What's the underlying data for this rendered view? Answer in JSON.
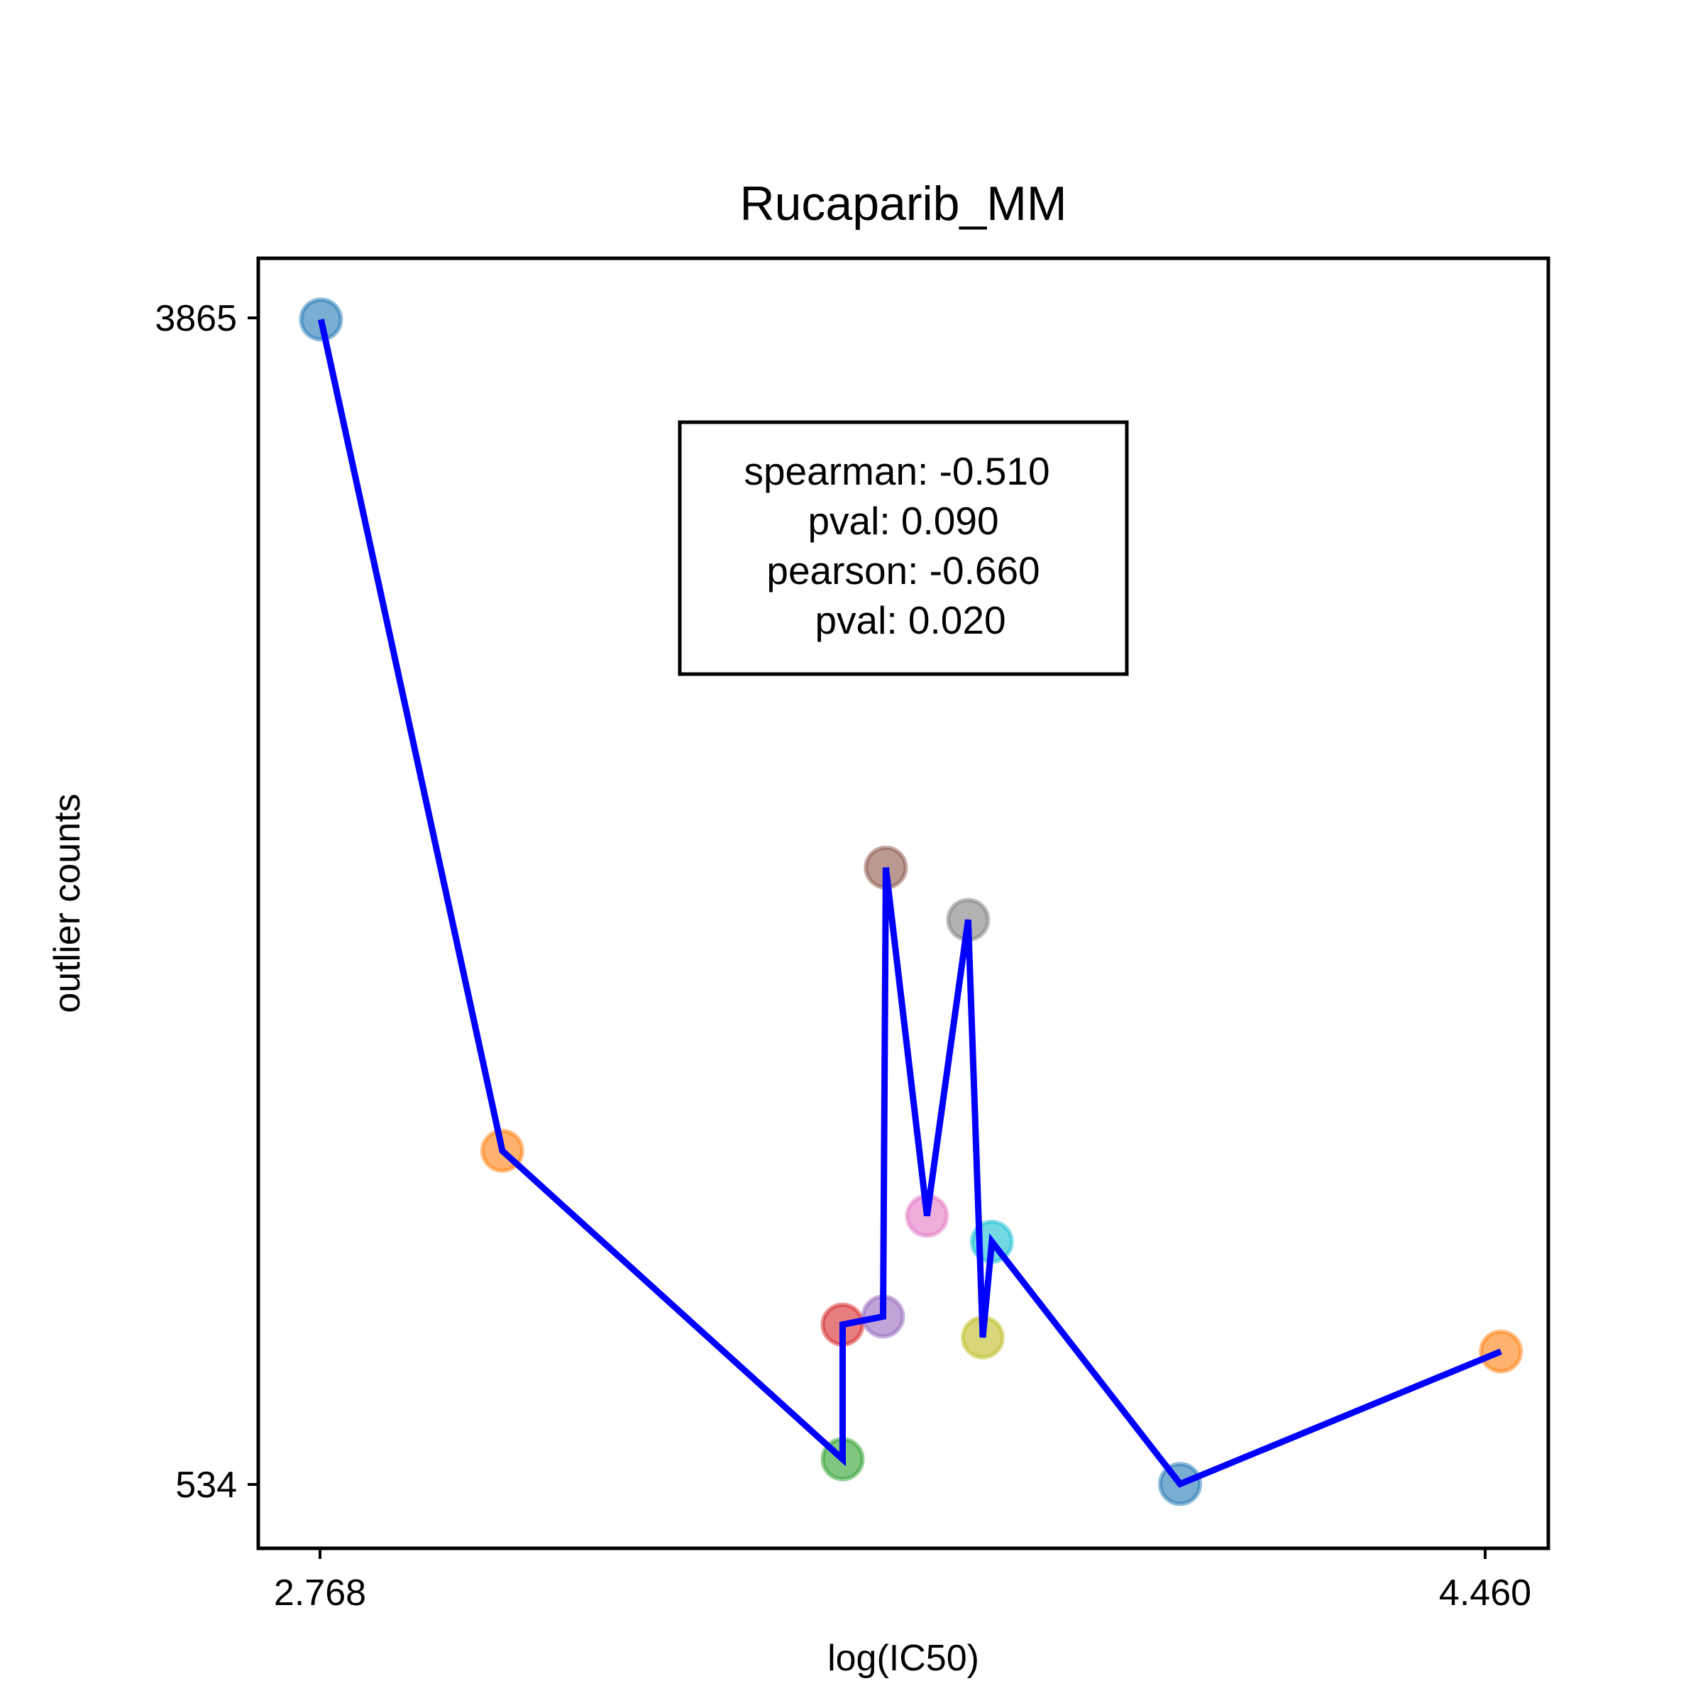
{
  "chart_data": {
    "type": "scatter",
    "title": "Rucaparib_MM",
    "xlabel": "log(IC50)",
    "ylabel": "outlier counts",
    "xlim": [
      2.678,
      4.528
    ],
    "ylim": [
      350,
      4040
    ],
    "x_ticks": [
      "2.768",
      "4.460"
    ],
    "x_tick_values": [
      2.768,
      4.46
    ],
    "y_ticks": [
      "3865",
      "534"
    ],
    "y_tick_values": [
      3865,
      534
    ],
    "grid": false,
    "line_color": "#0000ff",
    "points": [
      {
        "x": 2.768,
        "y": 3865,
        "color": "#1f77b4"
      },
      {
        "x": 3.028,
        "y": 1487,
        "color": "#ff7f0e"
      },
      {
        "x": 3.516,
        "y": 605,
        "color": "#2ca02c"
      },
      {
        "x": 3.516,
        "y": 990,
        "color": "#d62728"
      },
      {
        "x": 3.574,
        "y": 1013,
        "color": "#9467bd"
      },
      {
        "x": 3.578,
        "y": 2297,
        "color": "#8c564b"
      },
      {
        "x": 3.637,
        "y": 1301,
        "color": "#e377c2"
      },
      {
        "x": 3.696,
        "y": 2148,
        "color": "#7f7f7f"
      },
      {
        "x": 3.717,
        "y": 953,
        "color": "#bcbd22"
      },
      {
        "x": 3.73,
        "y": 1227,
        "color": "#17becf"
      },
      {
        "x": 4.0,
        "y": 534,
        "color": "#1f77b4"
      },
      {
        "x": 4.46,
        "y": 913,
        "color": "#ff7f0e"
      }
    ],
    "stats": {
      "line1": "spearman: -0.510",
      "line2": "pval: 0.090",
      "line3": "pearson: -0.660",
      "line4": "pval: 0.020"
    }
  }
}
